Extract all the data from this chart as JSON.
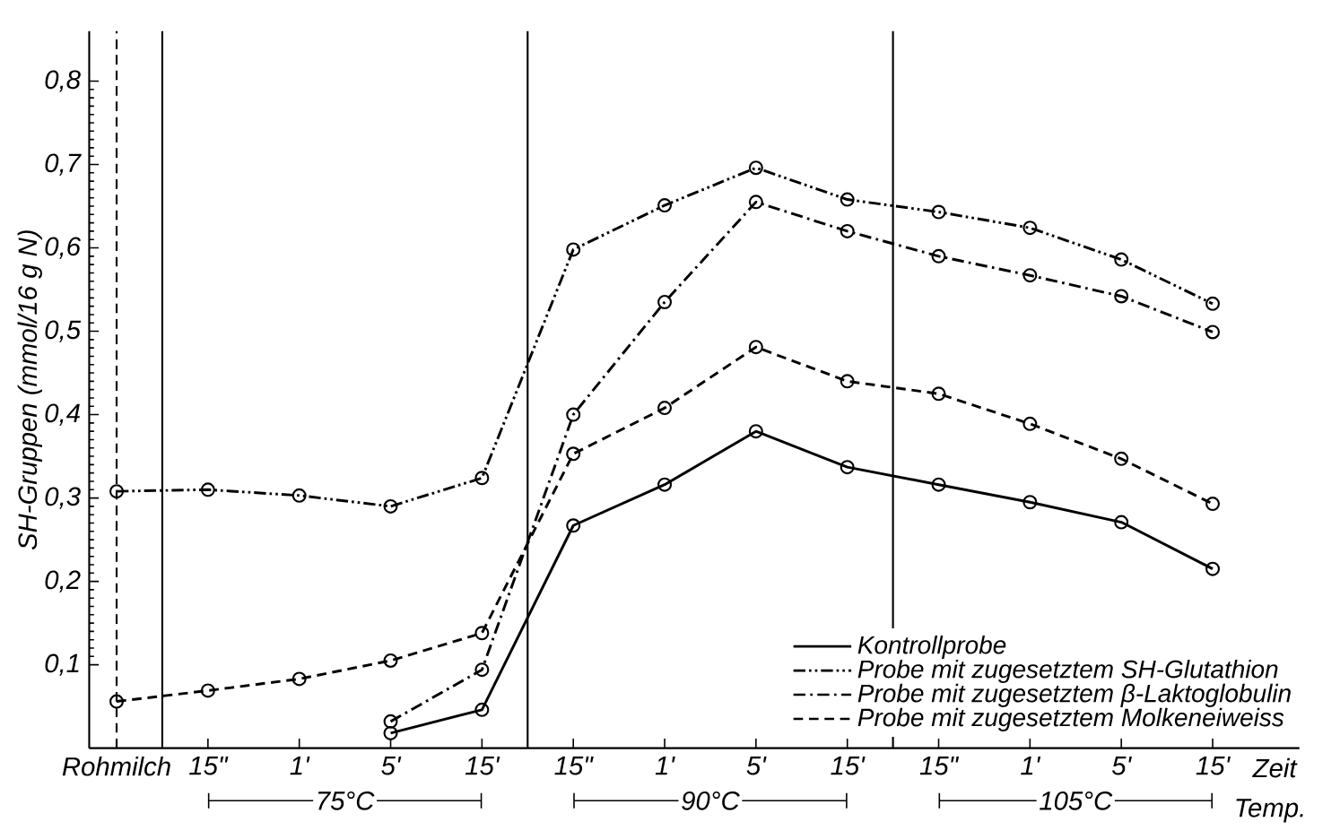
{
  "chart_data": {
    "type": "line",
    "xlabel": "Zeit",
    "ylabel": "SH-Gruppen (mmol/16 g N)",
    "annotations": [
      "75°C",
      "90°C",
      "105°C",
      "Temp."
    ],
    "categories": [
      "Rohmilch",
      "15\"",
      "1'",
      "5'",
      "15'",
      "15\"",
      "1'",
      "5'",
      "15'",
      "15\"",
      "1'",
      "5'",
      "15'"
    ],
    "ylim": [
      0,
      0.86
    ],
    "yticks": [
      {
        "value": 0.1,
        "label": "0,1"
      },
      {
        "value": 0.2,
        "label": "0,2"
      },
      {
        "value": 0.3,
        "label": "0,3"
      },
      {
        "value": 0.4,
        "label": "0,4"
      },
      {
        "value": 0.5,
        "label": "0,5"
      },
      {
        "value": 0.6,
        "label": "0,6"
      },
      {
        "value": 0.7,
        "label": "0,7"
      },
      {
        "value": 0.8,
        "label": "0,8"
      }
    ],
    "marker": "circle",
    "legend": "bottom right",
    "ref_lines": [
      {
        "axis": "x",
        "value": "Rohmilch",
        "line_style": "dashed",
        "color": "#000000"
      }
    ],
    "series": [
      {
        "name": "Kontrollprobe",
        "color": "#000000",
        "line_style": "solid",
        "values": [
          null,
          null,
          null,
          0.018,
          0.046,
          0.267,
          0.316,
          0.38,
          0.337,
          0.316,
          0.295,
          0.271,
          0.215
        ]
      },
      {
        "name": "Probe mit zugesetztem SH-Glutathion",
        "color": "#000000",
        "line_style": "dashdotdotted",
        "values": [
          0.308,
          0.31,
          0.303,
          0.29,
          0.324,
          0.598,
          0.651,
          0.696,
          0.658,
          0.643,
          0.624,
          0.586,
          0.533
        ]
      },
      {
        "name": "Probe mit zugesetztem β-Laktoglobulin",
        "color": "#000000",
        "line_style": "dashdotted",
        "values": [
          null,
          null,
          null,
          0.032,
          0.094,
          0.4,
          0.535,
          0.655,
          0.62,
          0.59,
          0.567,
          0.542,
          0.499
        ]
      },
      {
        "name": "Probe mit zugesetztem Molkeneiweiss",
        "color": "#000000",
        "line_style": "dashed",
        "values": [
          0.056,
          0.069,
          0.083,
          0.105,
          0.138,
          0.353,
          0.408,
          0.481,
          0.44,
          0.425,
          0.389,
          0.347,
          0.293
        ]
      }
    ]
  }
}
